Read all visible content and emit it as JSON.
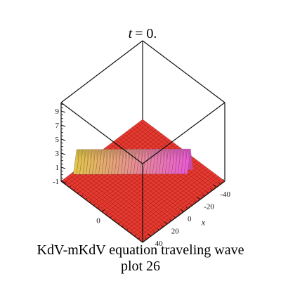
{
  "chart_data": {
    "type": "surface3d",
    "title_var": "t",
    "title_value": "= 0.",
    "caption_line1": "KdV-mKdV equation  traveling wave",
    "caption_line2": "plot 26",
    "x_axis": {
      "label": "x",
      "ticks": [
        "-40",
        "-20",
        "0",
        "20",
        "40"
      ],
      "range": [
        -50,
        50
      ]
    },
    "y_axis": {
      "label": "",
      "ticks": [
        "0"
      ],
      "range": [
        -50,
        50
      ]
    },
    "z_axis": {
      "label": "",
      "ticks": [
        "9",
        "7",
        "5",
        "3",
        "1",
        "-1"
      ],
      "range": [
        -1,
        10
      ]
    },
    "grid": "none",
    "surface_color": "#e83a30",
    "wave_color_low": "#e0c64a",
    "wave_color_high": "#e85ad8",
    "wave_peak": 3.2
  }
}
